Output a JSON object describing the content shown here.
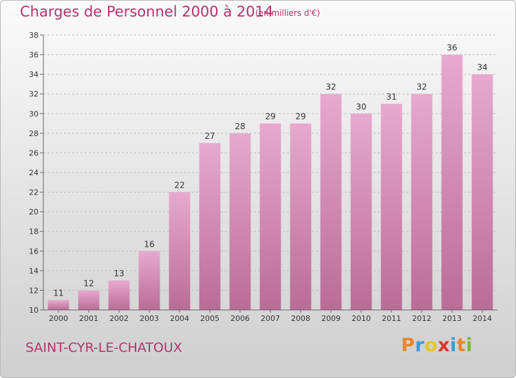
{
  "header": {
    "title": "Charges de Personnel 2000 à 2014",
    "subtitle": "(en milliers d'€)"
  },
  "footer": {
    "commune": "SAINT-CYR-LE-CHATOUX",
    "logo_letters": [
      "P",
      "r",
      "o",
      "x",
      "i",
      "t",
      "i"
    ],
    "logo_colors": [
      "#e8862a",
      "#3a9ad9",
      "#e8c52a",
      "#d9342b",
      "#3a9ad9",
      "#e8862a",
      "#7ab83a"
    ]
  },
  "colors": {
    "title": "#b5336b",
    "bar_top": "#e7a9cf",
    "bar_bottom": "#b96c97",
    "axis": "#666666",
    "grid": "#bdbdbd",
    "label": "#333333"
  },
  "chart_data": {
    "type": "bar",
    "categories": [
      "2000",
      "2001",
      "2002",
      "2003",
      "2004",
      "2005",
      "2006",
      "2007",
      "2008",
      "2009",
      "2010",
      "2011",
      "2012",
      "2013",
      "2014"
    ],
    "values": [
      11,
      12,
      13,
      16,
      22,
      27,
      28,
      29,
      29,
      32,
      30,
      31,
      32,
      36,
      34
    ],
    "ylim": [
      10,
      38
    ],
    "yticks": [
      10,
      12,
      14,
      16,
      18,
      20,
      22,
      24,
      26,
      28,
      30,
      32,
      34,
      36,
      38
    ],
    "grid": true,
    "value_labels": true
  }
}
